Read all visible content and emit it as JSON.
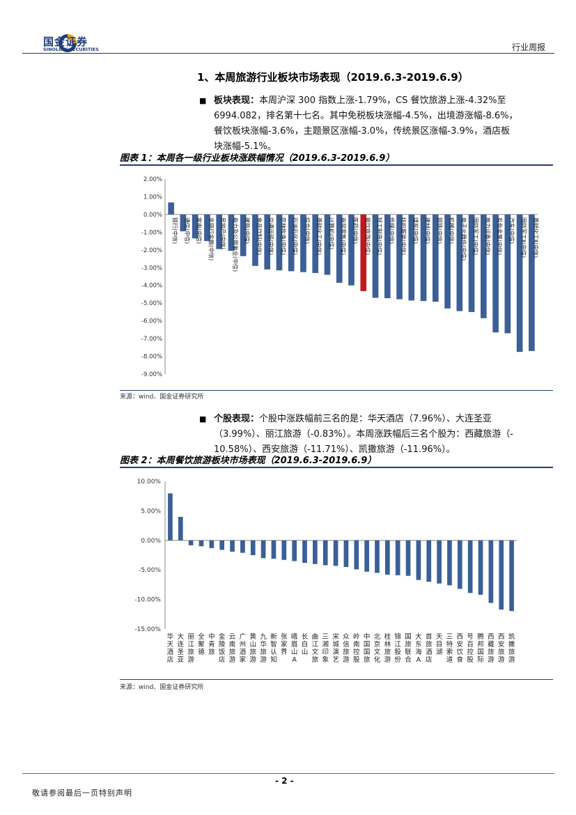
{
  "header": {
    "brand_cn": "国金证券",
    "brand_en": "SINOLINK SECURITIES",
    "report_type": "行业周报"
  },
  "section_title": "1、本周旅游行业板块市场表现（2019.6.3-2019.6.9）",
  "para1": {
    "bullet": "■",
    "label": "板块表现：",
    "lines": [
      "本周沪深 300 指数上涨-1.79%，CS 餐饮旅游上涨-4.32%至",
      "6994.082，排名第十七名。其中免税板块涨幅-4.5%，出境游涨幅-8.6%，",
      "餐饮板块涨幅-3.6%，主题景区涨幅-3.0%，传统景区涨幅-3.9%，酒店板",
      "块涨幅-5.1%。"
    ]
  },
  "figure1": {
    "title": "图表 1：本周各一级行业板块涨跌幅情况（2019.6.3-2019.6.9）",
    "source": "来源：wind、国金证券研究所"
  },
  "para2": {
    "bullet": "■",
    "label": "个股表现：",
    "lines": [
      "个股中涨跌幅前三名的是：华天酒店（7.96%）、大连圣亚",
      "（3.99%）、丽江旅游（-0.83%）。本周涨跌幅后三名个股为：西藏旅游（-",
      "10.58%）、西安旅游（-11.71%）、凯撒旅游（-11.96%）。"
    ]
  },
  "figure2": {
    "title": "图表 2：本周餐饮旅游板块市场表现（2019.6.3-2019.6.9）",
    "source": "来源：wind、国金证券研究所"
  },
  "footer": {
    "page": "- 2 -",
    "disclaimer": "敬请参阅最后一页特别声明"
  },
  "colors": {
    "bar": "#3b5f97",
    "highlight": "#c0181c",
    "brand": "#1f3d7a"
  },
  "chart_data": [
    {
      "type": "bar",
      "title": "图表 1：本周各一级行业板块涨跌幅情况（2019.6.3-2019.6.9）",
      "ylim": [
        -9,
        2
      ],
      "yticks": [
        "2.00%",
        "1.00%",
        "0.00%",
        "-1.00%",
        "-2.00%",
        "-3.00%",
        "-4.00%",
        "-5.00%",
        "-6.00%",
        "-7.00%",
        "-8.00%",
        "-9.00%"
      ],
      "highlight_index": 16,
      "categories": [
        "银行(中信)",
        "通信(中信)",
        "家电(中信)",
        "非银行金融(中信)",
        "房地产(中信)",
        "电力及公用事业(中信)",
        "建筑(中信)",
        "食品饮料(中信)",
        "交通运输(中信)",
        "农林牧渔(中信)",
        "石油石化(中信)",
        "综合(中信)",
        "基础化工(中信)",
        "计算机(中信)",
        "商贸零售(中信)",
        "医药(中信)",
        "餐饮旅游(中信)",
        "轻工制造(中信)",
        "传媒(中信)",
        "纺织服装(中信)",
        "煤炭(中信)",
        "建材(中信)",
        "钢铁(中信)",
        "机械(中信)",
        "电子元器件(中信)",
        "国防军工(中信)",
        "电力设备(中信)",
        "有色金属(中信)",
        "汽车(中信)",
        "国防军工Ⅱ(中信)",
        "基础化工Ⅱ(中信)"
      ],
      "values": [
        0.68,
        -0.95,
        -1.35,
        -1.5,
        -1.95,
        -2.05,
        -2.35,
        -2.9,
        -3.1,
        -3.15,
        -3.2,
        -3.25,
        -3.3,
        -3.4,
        -3.85,
        -4.0,
        -4.32,
        -4.7,
        -4.72,
        -4.78,
        -4.85,
        -4.88,
        -4.92,
        -5.3,
        -5.45,
        -5.5,
        -5.85,
        -6.65,
        -6.7,
        -7.75,
        -7.7
      ]
    },
    {
      "type": "bar",
      "title": "图表 2：本周餐饮旅游板块市场表现（2019.6.3-2019.6.9）",
      "ylim": [
        -15,
        10
      ],
      "yticks": [
        "10.00%",
        "5.00%",
        "0.00%",
        "-5.00%",
        "-10.00%",
        "-15.00%"
      ],
      "categories": [
        "华天酒店",
        "大连圣亚",
        "丽江旅游",
        "全聚德",
        "中青旅",
        "金陵饭店",
        "云南旅游",
        "广州酒家",
        "黄山旅游",
        "九华旅游",
        "新智认知",
        "张家界",
        "峨眉山A",
        "长白山",
        "曲江文旅",
        "三湘印象",
        "宋城演艺",
        "众信旅游",
        "岭南控股",
        "中国国旅",
        "北京文化",
        "桂林旅游",
        "锦江股份",
        "国旅联合",
        "大东海A",
        "首旅酒店",
        "天目湖",
        "三特索道",
        "西安饮食",
        "号百控股",
        "腾邦国际",
        "西藏旅游",
        "西安旅游",
        "凯撒旅游"
      ],
      "values": [
        7.96,
        3.99,
        -0.83,
        -1.0,
        -1.3,
        -1.6,
        -1.9,
        -2.1,
        -2.5,
        -3.0,
        -3.1,
        -3.3,
        -3.5,
        -3.8,
        -4.0,
        -4.2,
        -4.3,
        -4.5,
        -4.9,
        -5.3,
        -5.5,
        -5.8,
        -5.9,
        -6.0,
        -6.7,
        -7.0,
        -7.3,
        -7.6,
        -8.2,
        -8.9,
        -9.2,
        -10.58,
        -11.71,
        -11.96
      ]
    }
  ]
}
